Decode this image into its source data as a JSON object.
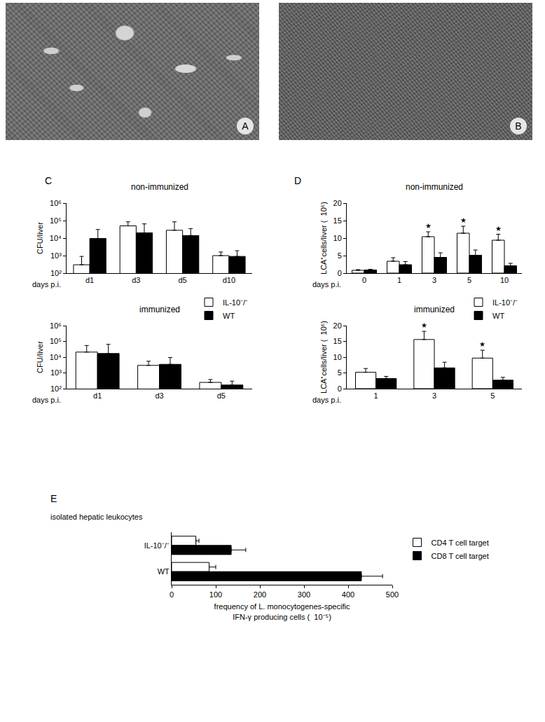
{
  "images": [
    {
      "label": "A"
    },
    {
      "label": "B"
    }
  ],
  "chart_data": [
    {
      "type": "bar",
      "panel": "C",
      "title": "non-immunized",
      "y_label": "CFU/liver",
      "x_label": "days p.i.",
      "categories": [
        "d1",
        "d3",
        "d5",
        "d10"
      ],
      "log": "y",
      "ylim": [
        100,
        1000000
      ],
      "yticks": [
        {
          "value": 100,
          "label": "10²"
        },
        {
          "value": 1000,
          "label": "10³"
        },
        {
          "value": 10000,
          "label": "10⁴"
        },
        {
          "value": 100000,
          "label": "10⁵"
        },
        {
          "value": 1000000,
          "label": "10⁶"
        }
      ],
      "series": [
        {
          "name": "IL-10⁻/⁻",
          "color": "#ffffff",
          "values": [
            300,
            50000,
            28000,
            1000
          ],
          "errors": [
            600,
            35000,
            57000,
            600
          ]
        },
        {
          "name": "WT",
          "color": "#000000",
          "values": [
            9500,
            20000,
            14000,
            900
          ],
          "errors": [
            21500,
            45000,
            21000,
            1000
          ]
        }
      ]
    },
    {
      "type": "bar",
      "title": "immunized",
      "y_label": "CFU/liver",
      "x_label": "days p.i.",
      "categories": [
        "d1",
        "d3",
        "d5"
      ],
      "log": "y",
      "legend": "top right",
      "ylim": [
        100,
        1000000
      ],
      "yticks": [
        {
          "value": 100,
          "label": "10²"
        },
        {
          "value": 1000,
          "label": "10³"
        },
        {
          "value": 10000,
          "label": "10⁴"
        },
        {
          "value": 100000,
          "label": "10⁵"
        },
        {
          "value": 1000000,
          "label": "10⁶"
        }
      ],
      "series": [
        {
          "name": "IL-10⁻/⁻",
          "color": "#ffffff",
          "values": [
            21000,
            3000,
            250
          ],
          "errors": [
            34000,
            2500,
            130
          ]
        },
        {
          "name": "WT",
          "color": "#000000",
          "values": [
            17000,
            3500,
            170
          ],
          "errors": [
            48000,
            6000,
            130
          ]
        }
      ]
    },
    {
      "type": "bar",
      "panel": "D",
      "title": "non-immunized",
      "y_label": "LCA⁺cells/liver (  10⁶)",
      "x_label": "days p.i.",
      "categories": [
        "0",
        "1",
        "3",
        "5",
        "10"
      ],
      "ylim": [
        0,
        20
      ],
      "yticks": [
        0,
        5,
        10,
        15,
        20
      ],
      "series": [
        {
          "name": "IL-10⁻/⁻",
          "color": "#ffffff",
          "values": [
            0.8,
            3.4,
            10.4,
            11.4,
            9.4
          ],
          "errors": [
            0.2,
            1.0,
            1.4,
            2.0,
            1.7
          ]
        },
        {
          "name": "WT",
          "color": "#000000",
          "values": [
            0.9,
            2.4,
            4.5,
            5.1,
            2.1
          ],
          "errors": [
            0.2,
            0.9,
            1.3,
            1.5,
            0.7
          ]
        }
      ],
      "annotations": [
        {
          "text": "★",
          "category": "3",
          "series": "IL-10⁻/⁻",
          "y": 11.8
        },
        {
          "text": "★",
          "category": "5",
          "series": "IL-10⁻/⁻",
          "y": 13.4
        },
        {
          "text": "★",
          "category": "10",
          "series": "IL-10⁻/⁻",
          "y": 11.1
        }
      ]
    },
    {
      "type": "bar",
      "title": "immunized",
      "y_label": "LCA⁺cells/liver (  10⁶)",
      "x_label": "days p.i.",
      "categories": [
        "1",
        "3",
        "5"
      ],
      "legend": "top right",
      "ylim": [
        0,
        20
      ],
      "yticks": [
        0,
        5,
        10,
        15,
        20
      ],
      "series": [
        {
          "name": "IL-10⁻/⁻",
          "color": "#ffffff",
          "values": [
            5.2,
            15.6,
            9.7
          ],
          "errors": [
            1.2,
            2.6,
            2.5
          ]
        },
        {
          "name": "WT",
          "color": "#000000",
          "values": [
            3.2,
            6.6,
            2.7
          ],
          "errors": [
            0.7,
            1.8,
            0.9
          ]
        }
      ],
      "annotations": [
        {
          "text": "★",
          "category": "3",
          "series": "IL-10⁻/⁻",
          "y": 18.2
        },
        {
          "text": "★",
          "category": "5",
          "series": "IL-10⁻/⁻",
          "y": 12.2
        }
      ]
    },
    {
      "type": "bar",
      "panel": "E",
      "subtitle": "isolated hepatic leukocytes",
      "orientation": "horizontal",
      "x_label": "frequency of L. monocytogenes-specific\nIFN-γ producing cells (  10⁻⁵)",
      "categories": [
        "IL-10⁻/⁻",
        "WT"
      ],
      "legend": "right",
      "xlim": [
        0,
        500
      ],
      "xticks": [
        0,
        100,
        200,
        300,
        400,
        500
      ],
      "series": [
        {
          "name": "CD4 T cell target",
          "color": "#ffffff",
          "values": [
            55,
            85
          ],
          "errors": [
            7,
            15
          ]
        },
        {
          "name": "CD8 T cell target",
          "color": "#000000",
          "values": [
            135,
            430
          ],
          "errors": [
            33,
            48
          ]
        }
      ]
    }
  ]
}
